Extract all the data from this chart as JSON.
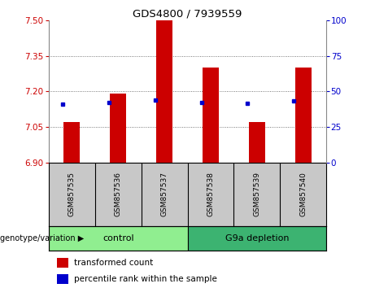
{
  "title": "GDS4800 / 7939559",
  "samples": [
    "GSM857535",
    "GSM857536",
    "GSM857537",
    "GSM857538",
    "GSM857539",
    "GSM857540"
  ],
  "bar_tops": [
    7.07,
    7.19,
    7.5,
    7.3,
    7.07,
    7.3
  ],
  "bar_base": 6.9,
  "percentile_values": [
    7.145,
    7.155,
    7.165,
    7.155,
    7.15,
    7.16
  ],
  "ymin": 6.9,
  "ymax": 7.5,
  "yticks_left": [
    6.9,
    7.05,
    7.2,
    7.35,
    7.5
  ],
  "right_yticks_vals": [
    0,
    25,
    50,
    75,
    100
  ],
  "bar_color": "#cc0000",
  "dot_color": "#0000cc",
  "control_color": "#90ee90",
  "depletion_color": "#3cb371",
  "group_bg_color": "#c8c8c8",
  "left_axis_color": "#cc0000",
  "right_axis_color": "#0000cc",
  "grid_color": "#555555",
  "plot_bg": "#ffffff",
  "bar_width": 0.35,
  "group_labels": [
    "control",
    "G9a depletion"
  ],
  "xlabel": "genotype/variation",
  "legend_items": [
    "transformed count",
    "percentile rank within the sample"
  ]
}
